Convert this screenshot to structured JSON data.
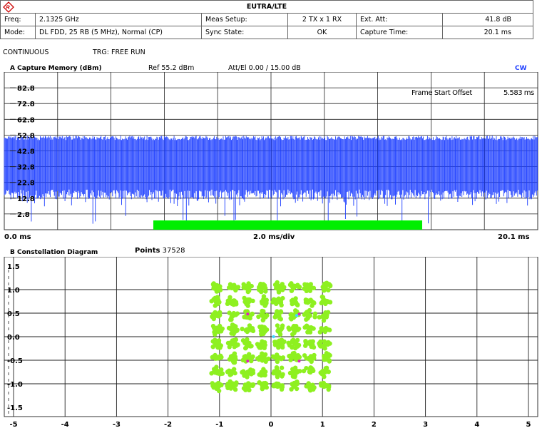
{
  "header": {
    "title": "EUTRA/LTE",
    "rows": [
      {
        "label": "Freq:",
        "value": "2.1325 GHz",
        "label2": "Meas Setup:",
        "value2": "2 TX x 1 RX",
        "label3": "Ext. Att:",
        "value3": "41.8 dB"
      },
      {
        "label": "Mode:",
        "value": "DL FDD, 25 RB (5 MHz), Normal (CP)",
        "label2": "Sync State:",
        "value2": "OK",
        "label3": "Capture Time:",
        "value3": "20.1 ms"
      }
    ],
    "status_left": "CONTINUOUS",
    "status_trg": "TRG: FREE RUN"
  },
  "panel_a": {
    "title": "A  Capture Memory (dBm)",
    "ref": "Ref   55.2 dBm",
    "att": "Att/El  0.00 / 15.00 dB",
    "cw": "CW",
    "frame_label": "Frame Start Offset",
    "frame_value": "5.583 ms",
    "y_ticks": [
      "82.8",
      "72.8",
      "62.8",
      "52.8",
      "42.8",
      "32.8",
      "22.8",
      "12.8",
      "2.8"
    ],
    "x_left": "0.0 ms",
    "x_center": "2.0 ms/div",
    "x_right": "20.1 ms",
    "colors": {
      "trace": "#1a3cff",
      "marker": "#00ee00"
    }
  },
  "panel_b": {
    "title": "B  Constellation Diagram",
    "points_label": "Points",
    "points_value": "37528",
    "y_ticks": [
      "1.5",
      "1.0",
      "0.5",
      "0.0",
      "-0.5",
      "-1.0",
      "-1.5"
    ],
    "x_ticks": [
      "-5",
      "-4",
      "-3",
      "-2",
      "-1",
      "0",
      "1",
      "2",
      "3",
      "4",
      "5"
    ],
    "colors": {
      "points": "#8ef020",
      "accent_magenta": "#e020c0",
      "accent_cyan": "#40d8ff"
    }
  },
  "chart_data": {
    "type": "scatter",
    "title": "Constellation Diagram",
    "xlim": [
      -5,
      5
    ],
    "ylim": [
      -1.5,
      1.5
    ],
    "constellation_I": [
      -1.05,
      -0.75,
      -0.45,
      -0.15,
      0.15,
      0.45,
      0.75,
      1.05
    ],
    "constellation_Q": [
      1.05,
      0.75,
      0.45,
      0.15,
      -0.15,
      -0.45,
      -0.75,
      -1.05
    ],
    "points": 37528
  }
}
